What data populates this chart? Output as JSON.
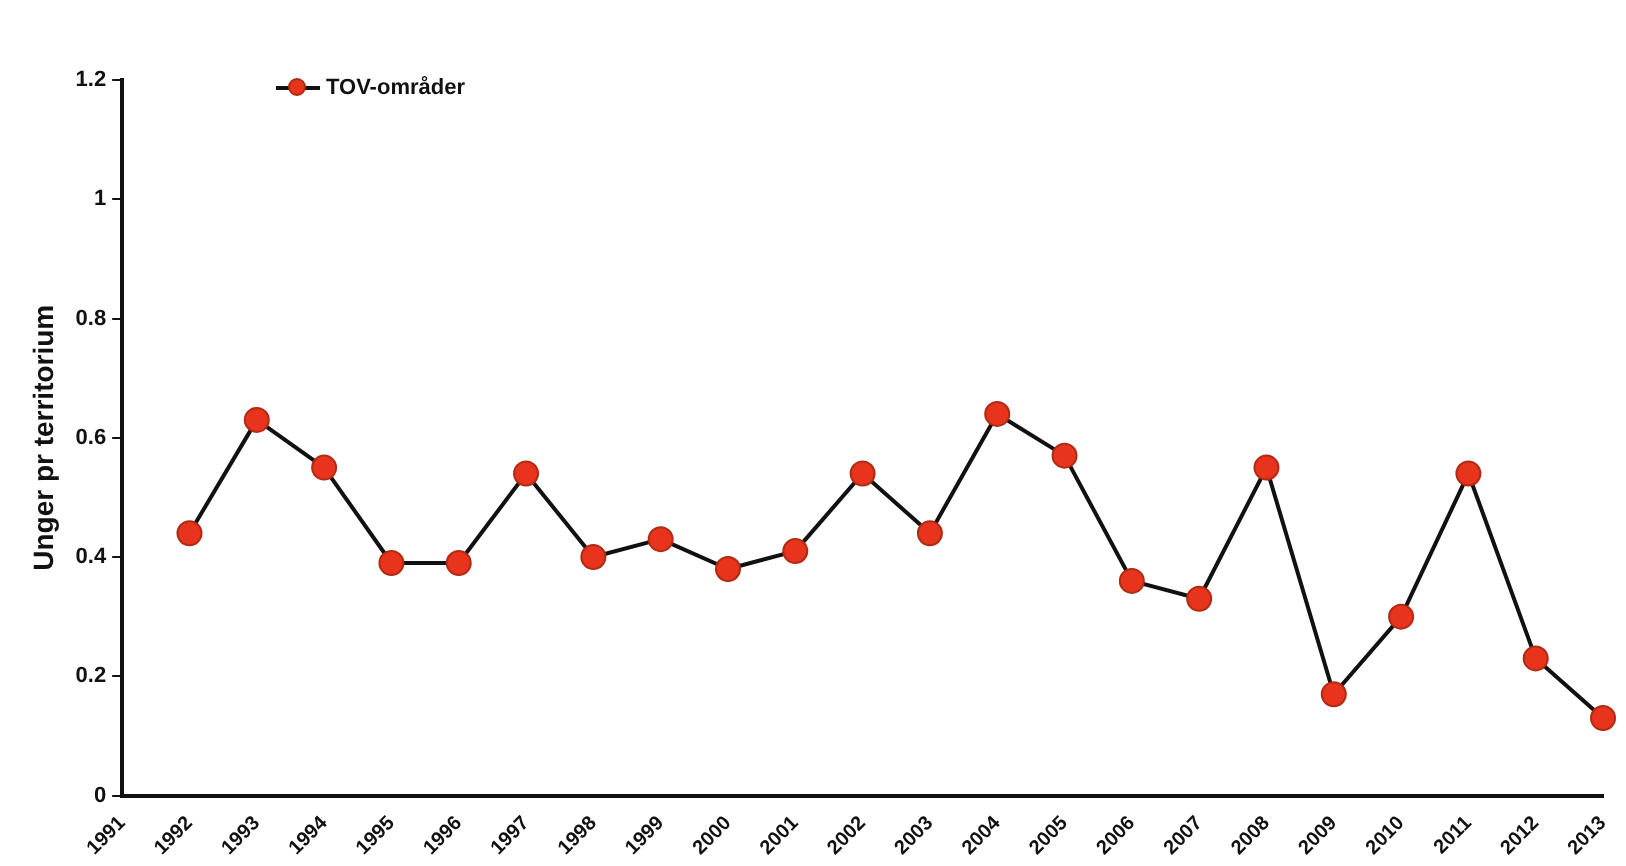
{
  "chart_data": {
    "type": "line",
    "ylabel": "Unger pr territorium",
    "categories": [
      "1991",
      "1992",
      "1993",
      "1994",
      "1995",
      "1996",
      "1997",
      "1998",
      "1999",
      "2000",
      "2001",
      "2002",
      "2003",
      "2004",
      "2005",
      "2006",
      "2007",
      "2008",
      "2009",
      "2010",
      "2011",
      "2012",
      "2013"
    ],
    "series": [
      {
        "name": "TOV-områder",
        "color": "#e8341c",
        "values": [
          null,
          0.44,
          0.63,
          0.55,
          0.39,
          0.39,
          0.54,
          0.4,
          0.43,
          0.38,
          0.41,
          0.54,
          0.44,
          0.64,
          0.57,
          0.36,
          0.33,
          0.55,
          0.17,
          0.3,
          0.54,
          0.23,
          0.13
        ]
      }
    ],
    "ylim": [
      0,
      1.2
    ],
    "yticks": [
      0,
      0.2,
      0.4,
      0.6,
      0.8,
      1,
      1.2
    ],
    "grid": false,
    "legend": "top left",
    "marker": "circle",
    "line_style": "solid"
  }
}
